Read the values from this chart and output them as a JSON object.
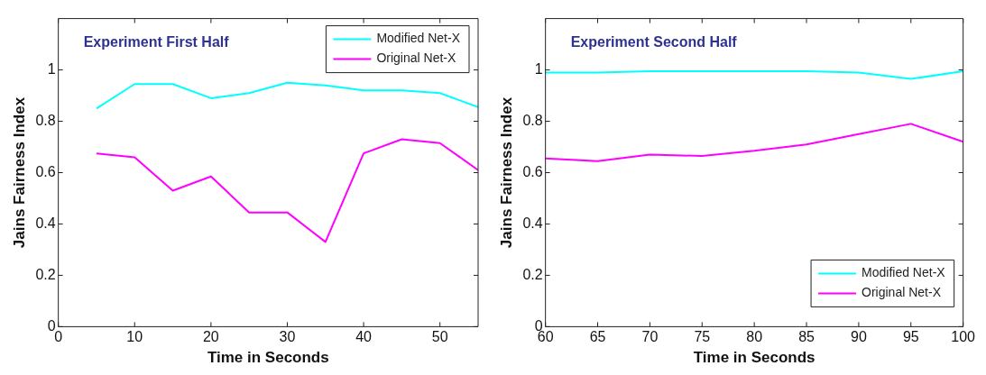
{
  "chart_data": [
    {
      "type": "line",
      "title": "Experiment First Half",
      "xlabel": "Time in Seconds",
      "ylabel": "Jains Fairness Index",
      "x": [
        5,
        10,
        15,
        20,
        25,
        30,
        35,
        40,
        45,
        50,
        55
      ],
      "series": [
        {
          "name": "Modified Net-X",
          "color": "#00ffff",
          "values": [
            0.85,
            0.945,
            0.945,
            0.89,
            0.91,
            0.95,
            0.94,
            0.92,
            0.92,
            0.91,
            0.855
          ]
        },
        {
          "name": "Original Net-X",
          "color": "#ff00ff",
          "values": [
            0.675,
            0.66,
            0.53,
            0.585,
            0.445,
            0.445,
            0.33,
            0.675,
            0.73,
            0.715,
            0.61
          ]
        }
      ],
      "xlim": [
        0,
        55
      ],
      "xticks": [
        0,
        10,
        20,
        30,
        40,
        50
      ],
      "ylim": [
        0,
        1.2
      ],
      "yticks": [
        0,
        0.2,
        0.4,
        0.6,
        0.8,
        1
      ],
      "grid": false,
      "legend": "top right",
      "marker": "none",
      "line_style": "solid"
    },
    {
      "type": "line",
      "title": "Experiment Second Half",
      "xlabel": "Time in Seconds",
      "ylabel": "Jains Fairness Index",
      "x": [
        60,
        65,
        70,
        75,
        80,
        85,
        90,
        95,
        100
      ],
      "series": [
        {
          "name": "Modified Net-X",
          "color": "#00ffff",
          "values": [
            0.99,
            0.99,
            0.995,
            0.995,
            0.995,
            0.995,
            0.99,
            0.965,
            0.995
          ]
        },
        {
          "name": "Original Net-X",
          "color": "#ff00ff",
          "values": [
            0.655,
            0.645,
            0.67,
            0.665,
            0.685,
            0.71,
            0.75,
            0.79,
            0.72
          ]
        }
      ],
      "xlim": [
        60,
        100
      ],
      "xticks": [
        60,
        65,
        70,
        75,
        80,
        85,
        90,
        95,
        100
      ],
      "ylim": [
        0,
        1.2
      ],
      "yticks": [
        0,
        0.2,
        0.4,
        0.6,
        0.8,
        1
      ],
      "grid": false,
      "legend": "bottom right",
      "marker": "none",
      "line_style": "solid"
    }
  ]
}
